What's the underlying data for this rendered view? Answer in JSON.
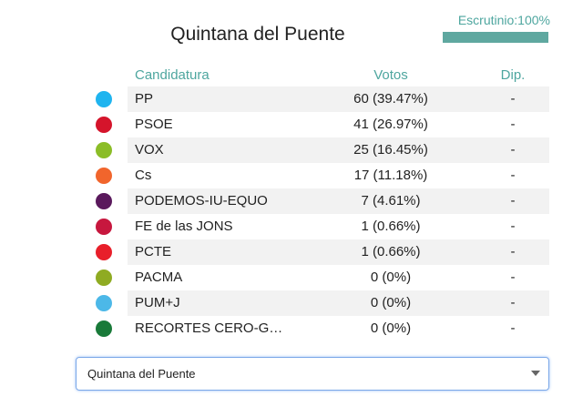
{
  "header": {
    "title": "Quintana del Puente",
    "scrutiny": "Escrutinio:100%",
    "progress": 100
  },
  "table": {
    "columns": [
      "Candidatura",
      "Votos",
      "Dip."
    ],
    "rows": [
      {
        "name": "PP",
        "votes": "60 (39.47%)",
        "dip": "-",
        "color": "#1fb4ef"
      },
      {
        "name": "PSOE",
        "votes": "41 (26.97%)",
        "dip": "-",
        "color": "#d5142b"
      },
      {
        "name": "VOX",
        "votes": "25 (16.45%)",
        "dip": "-",
        "color": "#8bbd27"
      },
      {
        "name": "Cs",
        "votes": "17 (11.18%)",
        "dip": "-",
        "color": "#f1652c"
      },
      {
        "name": "PODEMOS-IU-EQUO",
        "votes": "7 (4.61%)",
        "dip": "-",
        "color": "#5a195c"
      },
      {
        "name": "FE de las JONS",
        "votes": "1 (0.66%)",
        "dip": "-",
        "color": "#c7173e"
      },
      {
        "name": "PCTE",
        "votes": "1 (0.66%)",
        "dip": "-",
        "color": "#e81f2a"
      },
      {
        "name": "PACMA",
        "votes": "0 (0%)",
        "dip": "-",
        "color": "#8fab22"
      },
      {
        "name": "PUM+J",
        "votes": "0 (0%)",
        "dip": "-",
        "color": "#4cb8e8"
      },
      {
        "name": "RECORTES CERO-G…",
        "votes": "0 (0%)",
        "dip": "-",
        "color": "#197a39"
      }
    ]
  },
  "select": {
    "value": "Quintana del Puente"
  }
}
